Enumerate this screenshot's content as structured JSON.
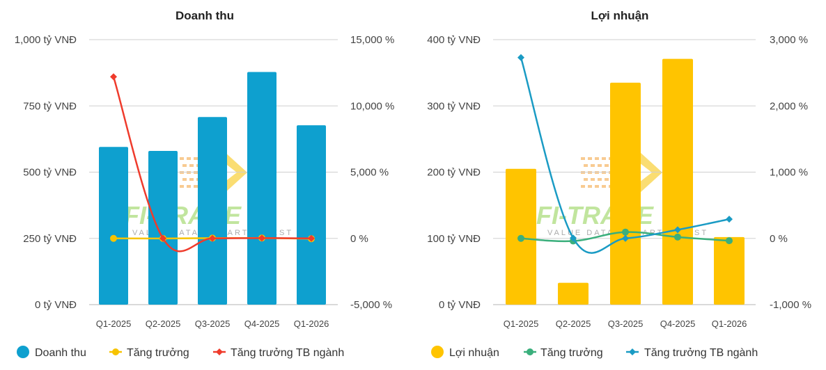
{
  "chart_data": [
    {
      "type": "bar",
      "title": "Doanh thu",
      "categories": [
        "Q1-2025",
        "Q2-2025",
        "Q3-2025",
        "Q4-2025",
        "Q1-2026"
      ],
      "left_axis": {
        "ticks": [
          "0 tỷ VNĐ",
          "250 tỷ VNĐ",
          "500 tỷ VNĐ",
          "750 tỷ VNĐ",
          "1,000 tỷ VNĐ"
        ],
        "ylim": [
          0,
          1000
        ],
        "unit": "tỷ VNĐ"
      },
      "right_axis": {
        "ticks": [
          "-5,000 %",
          "0 %",
          "5,000 %",
          "10,000 %",
          "15,000 %"
        ],
        "ylim": [
          -5000,
          15000
        ],
        "unit": "%"
      },
      "grid": true,
      "legend_position": "bottom",
      "series": [
        {
          "name": "Doanh thu",
          "type": "bar",
          "axis": "left",
          "color": "#0ea0cf",
          "values": [
            595,
            580,
            708,
            878,
            677
          ]
        },
        {
          "name": "Tăng trưởng",
          "type": "line",
          "axis": "right",
          "color": "#f7c300",
          "marker": "circle",
          "values": [
            0,
            -5,
            20,
            25,
            -25
          ]
        },
        {
          "name": "Tăng trưởng TB ngành",
          "type": "line",
          "axis": "right",
          "color": "#ef3b2c",
          "marker": "diamond",
          "values": [
            12200,
            0,
            0,
            20,
            0
          ]
        }
      ]
    },
    {
      "type": "bar",
      "title": "Lợi nhuận",
      "categories": [
        "Q1-2025",
        "Q2-2025",
        "Q3-2025",
        "Q4-2025",
        "Q1-2026"
      ],
      "left_axis": {
        "ticks": [
          "0 tỷ VNĐ",
          "100 tỷ VNĐ",
          "200 tỷ VNĐ",
          "300 tỷ VNĐ",
          "400 tỷ VNĐ"
        ],
        "ylim": [
          0,
          400
        ],
        "unit": "tỷ VNĐ"
      },
      "right_axis": {
        "ticks": [
          "-1,000 %",
          "0 %",
          "1,000 %",
          "2,000 %",
          "3,000 %"
        ],
        "ylim": [
          -1000,
          3000
        ],
        "unit": "%"
      },
      "grid": true,
      "legend_position": "bottom",
      "series": [
        {
          "name": "Lợi nhuận",
          "type": "bar",
          "axis": "left",
          "color": "#ffc400",
          "values": [
            205,
            33,
            335,
            371,
            102
          ]
        },
        {
          "name": "Tăng trưởng",
          "type": "line",
          "axis": "right",
          "color": "#3aaf7c",
          "marker": "circle",
          "values": [
            0,
            -40,
            95,
            20,
            -35
          ]
        },
        {
          "name": "Tăng trưởng TB ngành",
          "type": "line",
          "axis": "right",
          "color": "#1a9bc4",
          "marker": "diamond",
          "values": [
            2730,
            5,
            0,
            130,
            290
          ]
        }
      ]
    }
  ],
  "watermark": {
    "text": "FI-TRADE",
    "tagline": "VALUE DATA - SMART INVEST",
    "colors": {
      "green": "#8fd14f",
      "orange": "#f4a13a",
      "yellow": "#f7c300"
    }
  }
}
